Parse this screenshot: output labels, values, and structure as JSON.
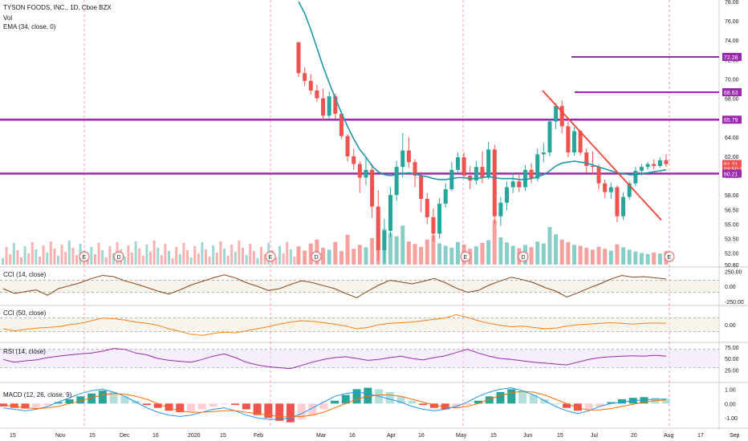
{
  "legend": {
    "symbol": "TYSON FOODS, INC., 1D, Cboe BZX",
    "volume": "Vol",
    "ema": "EMA (34, close, 0)",
    "cci14": "CCI (14, close)",
    "cci50": "CCI (50, close)",
    "rsi": "RSI (14, close)",
    "macd": "MACD (12, 26, close, 9)"
  },
  "colors": {
    "up": "#26a69a",
    "down": "#ef5350",
    "ema": "#2196a8",
    "hline": "#9c27b0",
    "trend": "#f44336",
    "cci": "#8b4513",
    "cci50": "#ff7f0e",
    "rsi": "#9c27b0",
    "macd": "#2196f3",
    "signal": "#ff6d00"
  },
  "chart_data": [
    {
      "type": "candlestick",
      "panel": "price",
      "y_ticks": [
        "78.00",
        "76.00",
        "74.00",
        "72.00",
        "70.00",
        "68.00",
        "66.00",
        "64.00",
        "62.00",
        "60.00",
        "58.00",
        "56.50",
        "55.00",
        "53.50",
        "52.00",
        "50.80"
      ],
      "ylim": [
        50.8,
        78.0
      ],
      "x_ticks": [
        "15",
        "Nov",
        "15",
        "Dec",
        "16",
        "2020",
        "15",
        "Feb",
        "Mar",
        "16",
        "Apr",
        "16",
        "May",
        "15",
        "Jun",
        "15",
        "Jul",
        "20",
        "Aug",
        "17",
        "Sep"
      ],
      "candles": [
        [
          73.8,
          73.8,
          70.2,
          70.6
        ],
        [
          70.6,
          71.2,
          69.3,
          69.8
        ],
        [
          69.8,
          70.5,
          68.4,
          68.8
        ],
        [
          68.8,
          69.4,
          67.6,
          68.0
        ],
        [
          68.0,
          69.0,
          65.7,
          66.2
        ],
        [
          66.2,
          68.7,
          65.9,
          68.2
        ],
        [
          68.2,
          68.5,
          65.9,
          66.4
        ],
        [
          66.4,
          66.7,
          63.8,
          64.1
        ],
        [
          64.1,
          64.3,
          61.5,
          62.0
        ],
        [
          62.0,
          62.8,
          60.6,
          61.2
        ],
        [
          61.2,
          61.5,
          58.2,
          59.8
        ],
        [
          59.8,
          62.0,
          59.0,
          60.6
        ],
        [
          60.6,
          61.2,
          55.6,
          56.8
        ],
        [
          56.8,
          58.5,
          51.2,
          52.3
        ],
        [
          52.3,
          55.5,
          51.0,
          54.3
        ],
        [
          54.3,
          58.8,
          53.6,
          58.0
        ],
        [
          58.0,
          61.5,
          57.4,
          60.9
        ],
        [
          60.9,
          64.4,
          59.8,
          62.6
        ],
        [
          62.6,
          64.0,
          60.8,
          61.4
        ],
        [
          61.4,
          61.7,
          58.8,
          60.0
        ],
        [
          60.0,
          60.4,
          56.2,
          57.6
        ],
        [
          57.6,
          58.2,
          55.0,
          55.7
        ],
        [
          55.7,
          56.6,
          53.2,
          54.0
        ],
        [
          54.0,
          57.7,
          53.5,
          57.1
        ],
        [
          57.1,
          59.2,
          56.7,
          58.6
        ],
        [
          58.6,
          61.4,
          58.4,
          60.6
        ],
        [
          60.6,
          62.4,
          60.2,
          61.9
        ],
        [
          61.9,
          62.4,
          59.7,
          60.0
        ],
        [
          60.0,
          61.0,
          58.6,
          59.5
        ],
        [
          59.5,
          61.5,
          59.1,
          60.9
        ],
        [
          60.9,
          62.5,
          59.2,
          59.8
        ],
        [
          59.8,
          63.5,
          59.6,
          62.7
        ],
        [
          62.7,
          63.2,
          55.0,
          55.8
        ],
        [
          55.8,
          57.8,
          54.8,
          57.2
        ],
        [
          57.2,
          59.4,
          56.4,
          58.8
        ],
        [
          58.8,
          60.3,
          58.2,
          59.4
        ],
        [
          59.4,
          60.2,
          58.3,
          58.8
        ],
        [
          58.8,
          61.1,
          58.4,
          60.6
        ],
        [
          60.6,
          61.3,
          59.2,
          59.7
        ],
        [
          59.7,
          62.8,
          59.4,
          62.2
        ],
        [
          62.2,
          63.4,
          61.4,
          62.4
        ],
        [
          62.4,
          65.9,
          62.0,
          65.6
        ],
        [
          65.6,
          67.5,
          64.8,
          67.2
        ],
        [
          67.2,
          67.8,
          64.4,
          65.1
        ],
        [
          65.1,
          65.6,
          61.9,
          62.4
        ],
        [
          62.4,
          65.0,
          62.1,
          64.6
        ],
        [
          64.6,
          64.7,
          62.1,
          62.4
        ],
        [
          62.4,
          62.8,
          60.3,
          61.0
        ],
        [
          61.0,
          62.5,
          60.1,
          60.9
        ],
        [
          60.9,
          61.2,
          58.6,
          59.2
        ],
        [
          59.2,
          59.6,
          57.7,
          58.3
        ],
        [
          58.3,
          59.3,
          57.6,
          58.8
        ],
        [
          58.8,
          59.0,
          55.2,
          55.8
        ],
        [
          55.8,
          58.3,
          55.4,
          57.8
        ],
        [
          57.8,
          59.4,
          57.5,
          59.2
        ],
        [
          59.2,
          60.9,
          58.9,
          60.5
        ],
        [
          60.5,
          61.2,
          60.0,
          60.9
        ],
        [
          60.9,
          61.4,
          60.6,
          61.2
        ],
        [
          61.2,
          61.7,
          60.7,
          61.0
        ],
        [
          61.0,
          61.9,
          60.8,
          61.6
        ],
        [
          61.6,
          62.2,
          60.9,
          61.2
        ]
      ],
      "volume": [
        0.38,
        0.29,
        0.44,
        0.52,
        0.35,
        0.31,
        0.47,
        0.28,
        0.62,
        0.33,
        0.41,
        0.36,
        0.55,
        0.97,
        0.74,
        0.66,
        0.59,
        0.81,
        0.48,
        0.43,
        0.37,
        0.52,
        0.61,
        0.44,
        0.39,
        0.35,
        0.47,
        0.42,
        0.33,
        0.38,
        0.45,
        0.51,
        0.93,
        0.57,
        0.46,
        0.39,
        0.34,
        0.41,
        0.36,
        0.48,
        0.44,
        0.78,
        0.63,
        0.52,
        0.47,
        0.41,
        0.39,
        0.35,
        0.31,
        0.37,
        0.33,
        0.29,
        0.42,
        0.36,
        0.31,
        0.27,
        0.24,
        0.22,
        0.25,
        0.23,
        0.28
      ],
      "ema34": [
        78.0,
        76.8,
        75.1,
        73.2,
        71.3,
        69.6,
        68.0,
        66.5,
        65.1,
        63.8,
        62.7,
        61.9,
        61.0,
        60.4,
        60.1,
        60.0,
        60.1,
        60.2,
        60.3,
        60.2,
        60.0,
        59.9,
        59.7,
        59.6,
        59.6,
        59.7,
        59.8,
        59.8,
        59.7,
        59.7,
        59.8,
        59.9,
        59.8,
        59.7,
        59.7,
        59.7,
        59.6,
        59.6,
        59.7,
        59.9,
        60.1,
        60.5,
        61.0,
        61.3,
        61.4,
        61.5,
        61.4,
        61.3,
        61.1,
        60.9,
        60.7,
        60.5,
        60.3,
        60.2,
        60.1,
        60.1,
        60.2,
        60.3,
        60.4,
        60.5,
        60.6
      ],
      "horizontal_levels": [
        72.28,
        68.63,
        65.79,
        60.21
      ],
      "price_labels": [
        "72.28",
        "68.63",
        "65.79",
        "61.21",
        "03:50:11",
        "60.21"
      ],
      "trendline": [
        [
          68.8,
          0
        ],
        [
          55.4,
          1
        ]
      ]
    },
    {
      "type": "line",
      "panel": "CCI (14, close)",
      "y_ticks": [
        "250.00",
        "0.00",
        "-250.00"
      ],
      "ylim": [
        -280,
        280
      ],
      "values": [
        -40,
        -120,
        -90,
        -60,
        -150,
        -40,
        10,
        60,
        130,
        180,
        160,
        90,
        40,
        -20,
        -80,
        -130,
        -60,
        20,
        80,
        140,
        190,
        140,
        60,
        0,
        -70,
        -40,
        30,
        90,
        60,
        10,
        -40,
        -120,
        -190,
        -80,
        20,
        100,
        70,
        40,
        80,
        130,
        60,
        -30,
        -100,
        -70,
        20,
        90,
        150,
        110,
        60,
        -20,
        -80,
        -180,
        -110,
        -30,
        40,
        120,
        180,
        150,
        160,
        140,
        120
      ]
    },
    {
      "type": "line",
      "panel": "CCI (50, close)",
      "y_ticks": [
        "0.00"
      ],
      "ylim": [
        -250,
        250
      ],
      "values": [
        -60,
        -90,
        -70,
        -50,
        -40,
        -30,
        0,
        20,
        60,
        100,
        90,
        70,
        40,
        20,
        -10,
        -60,
        -100,
        -140,
        -160,
        -130,
        -110,
        -120,
        -90,
        -60,
        -30,
        10,
        40,
        60,
        50,
        30,
        10,
        -20,
        -60,
        -40,
        0,
        20,
        30,
        40,
        60,
        80,
        100,
        150,
        110,
        60,
        20,
        -10,
        -30,
        -20,
        -40,
        -60,
        -50,
        -20,
        0,
        10,
        20,
        30,
        20,
        10,
        20,
        25,
        20
      ]
    },
    {
      "type": "line",
      "panel": "RSI (14, close)",
      "y_ticks": [
        "75.00",
        "50.00",
        "25.00"
      ],
      "ylim": [
        10,
        80
      ],
      "values": [
        48,
        42,
        45,
        47,
        52,
        55,
        58,
        60,
        62,
        66,
        72,
        70,
        62,
        58,
        50,
        46,
        44,
        42,
        48,
        55,
        60,
        52,
        42,
        36,
        32,
        30,
        28,
        35,
        42,
        48,
        52,
        54,
        50,
        46,
        48,
        52,
        55,
        50,
        47,
        52,
        56,
        63,
        70,
        62,
        55,
        50,
        48,
        45,
        42,
        40,
        38,
        36,
        42,
        48,
        52,
        54,
        55,
        56,
        55,
        57,
        55
      ]
    },
    {
      "type": "bar",
      "panel": "MACD (12, 26, close, 9)",
      "y_ticks": [
        "1.00",
        "0.00",
        "-1.00"
      ],
      "ylim": [
        -1.6,
        1.3
      ],
      "histogram": [
        -0.2,
        -0.3,
        -0.35,
        -0.3,
        -0.1,
        0.1,
        0.3,
        0.5,
        0.7,
        0.9,
        0.8,
        0.5,
        0.2,
        -0.1,
        -0.3,
        -0.5,
        -0.6,
        -0.55,
        -0.4,
        -0.2,
        -0.05,
        -0.1,
        -0.4,
        -0.8,
        -1.0,
        -1.2,
        -1.3,
        -1.1,
        -0.8,
        -0.4,
        0.2,
        0.6,
        1.0,
        1.1,
        1.0,
        0.8,
        0.5,
        0.2,
        -0.1,
        -0.3,
        -0.4,
        -0.3,
        -0.1,
        0.2,
        0.5,
        0.8,
        1.0,
        0.9,
        0.6,
        0.3,
        0.0,
        -0.3,
        -0.5,
        -0.4,
        -0.2,
        0.1,
        0.3,
        0.4,
        0.45,
        0.4,
        0.35
      ],
      "macd": [
        -0.3,
        -0.4,
        -0.5,
        -0.4,
        -0.2,
        0.1,
        0.4,
        0.7,
        0.9,
        1.0,
        0.8,
        0.5,
        0.1,
        -0.3,
        -0.6,
        -0.8,
        -0.9,
        -0.8,
        -0.6,
        -0.4,
        -0.3,
        -0.5,
        -0.8,
        -1.0,
        -1.1,
        -1.1,
        -1.0,
        -0.7,
        -0.3,
        0.1,
        0.5,
        0.7,
        0.8,
        0.7,
        0.5,
        0.3,
        0.1,
        -0.2,
        -0.4,
        -0.5,
        -0.4,
        -0.2,
        0.1,
        0.5,
        0.8,
        1.0,
        1.1,
        0.9,
        0.6,
        0.2,
        -0.2,
        -0.5,
        -0.7,
        -0.5,
        -0.2,
        0.0,
        0.1,
        0.2,
        0.25,
        0.3,
        0.3
      ],
      "signal": [
        -0.1,
        -0.2,
        -0.3,
        -0.35,
        -0.3,
        -0.2,
        0.0,
        0.2,
        0.4,
        0.6,
        0.7,
        0.65,
        0.5,
        0.3,
        0.0,
        -0.3,
        -0.5,
        -0.6,
        -0.6,
        -0.55,
        -0.5,
        -0.5,
        -0.6,
        -0.7,
        -0.8,
        -0.9,
        -0.95,
        -0.9,
        -0.8,
        -0.6,
        -0.3,
        0.0,
        0.3,
        0.5,
        0.6,
        0.6,
        0.5,
        0.3,
        0.1,
        -0.1,
        -0.25,
        -0.3,
        -0.2,
        0.0,
        0.3,
        0.55,
        0.75,
        0.85,
        0.8,
        0.6,
        0.3,
        0.0,
        -0.3,
        -0.45,
        -0.45,
        -0.35,
        -0.2,
        -0.05,
        0.1,
        0.2,
        0.25
      ]
    }
  ]
}
